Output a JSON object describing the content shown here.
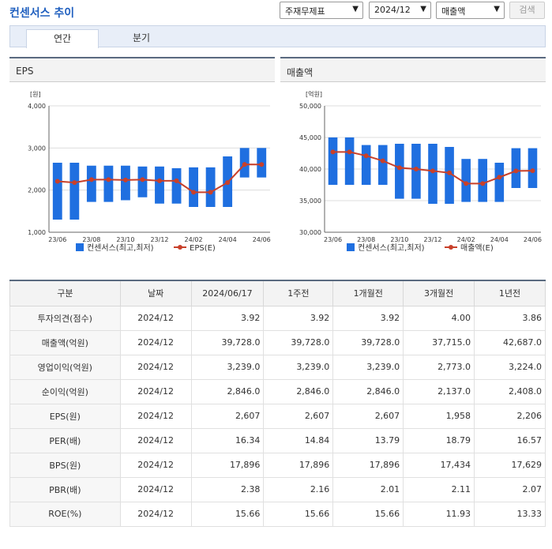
{
  "header": {
    "title": "컨센서스 추이",
    "select1": "주재무제표",
    "select2": "2024/12",
    "select3": "매출액",
    "search_label": "검색"
  },
  "tabs": [
    {
      "label": "연간"
    },
    {
      "label": "분기"
    }
  ],
  "chart_data": [
    {
      "type": "bar",
      "title": "EPS",
      "unit_label": "[원]",
      "ylim": [
        1000,
        4000
      ],
      "y_ticks": [
        "1,000",
        "2,000",
        "3,000",
        "4,000"
      ],
      "x_tick_labels": [
        "23/06",
        "23/08",
        "23/10",
        "23/12",
        "24/02",
        "24/04",
        "24/06"
      ],
      "legend": [
        "컨센서스(최고,최저)",
        "EPS(E)"
      ],
      "categories": [
        "23/06",
        "23/07",
        "23/08",
        "23/09",
        "23/10",
        "23/11",
        "23/12",
        "24/01",
        "24/02",
        "24/03",
        "24/04",
        "24/05",
        "24/06"
      ],
      "range_series": {
        "name": "컨센서스(최고,최저)",
        "high": [
          2650,
          2650,
          2580,
          2580,
          2580,
          2560,
          2560,
          2520,
          2540,
          2540,
          2800,
          3000,
          3000
        ],
        "low": [
          1300,
          1300,
          1720,
          1720,
          1760,
          1830,
          1680,
          1680,
          1600,
          1600,
          1600,
          2300,
          2300
        ]
      },
      "line_series": {
        "name": "EPS(E)",
        "values": [
          2210,
          2180,
          2250,
          2250,
          2240,
          2250,
          2220,
          2220,
          1950,
          1950,
          2180,
          2610,
          2607
        ]
      }
    },
    {
      "type": "bar",
      "title": "매출액",
      "unit_label": "[억원]",
      "ylim": [
        30000,
        50000
      ],
      "y_ticks": [
        "30,000",
        "35,000",
        "40,000",
        "45,000",
        "50,000"
      ],
      "x_tick_labels": [
        "23/06",
        "23/08",
        "23/10",
        "23/12",
        "24/02",
        "24/04",
        "24/06"
      ],
      "legend": [
        "컨센서스(최고,최저)",
        "매출액(E)"
      ],
      "categories": [
        "23/06",
        "23/07",
        "23/08",
        "23/09",
        "23/10",
        "23/11",
        "23/12",
        "24/01",
        "24/02",
        "24/03",
        "24/04",
        "24/05",
        "24/06"
      ],
      "range_series": {
        "name": "컨센서스(최고,최저)",
        "high": [
          45000,
          45000,
          43800,
          43800,
          44000,
          44000,
          44000,
          43500,
          41600,
          41600,
          41000,
          43300,
          43300
        ],
        "low": [
          37500,
          37500,
          37500,
          37500,
          35300,
          35300,
          34500,
          34500,
          34800,
          34800,
          34800,
          37000,
          37000
        ]
      },
      "line_series": {
        "name": "매출액(E)",
        "values": [
          42700,
          42700,
          42100,
          41300,
          40200,
          40000,
          39700,
          39400,
          37700,
          37700,
          38700,
          39700,
          39728
        ]
      }
    }
  ],
  "table": {
    "headers": [
      "구분",
      "날짜",
      "2024/06/17",
      "1주전",
      "1개월전",
      "3개월전",
      "1년전"
    ],
    "rows": [
      {
        "label": "투자의견(점수)",
        "date": "2024/12",
        "values": [
          "3.92",
          "3.92",
          "3.92",
          "4.00",
          "3.86"
        ]
      },
      {
        "label": "매출액(억원)",
        "date": "2024/12",
        "values": [
          "39,728.0",
          "39,728.0",
          "39,728.0",
          "37,715.0",
          "42,687.0"
        ]
      },
      {
        "label": "영업이익(억원)",
        "date": "2024/12",
        "values": [
          "3,239.0",
          "3,239.0",
          "3,239.0",
          "2,773.0",
          "3,224.0"
        ]
      },
      {
        "label": "순이익(억원)",
        "date": "2024/12",
        "values": [
          "2,846.0",
          "2,846.0",
          "2,846.0",
          "2,137.0",
          "2,408.0"
        ]
      },
      {
        "label": "EPS(원)",
        "date": "2024/12",
        "values": [
          "2,607",
          "2,607",
          "2,607",
          "1,958",
          "2,206"
        ]
      },
      {
        "label": "PER(배)",
        "date": "2024/12",
        "values": [
          "16.34",
          "14.84",
          "13.79",
          "18.79",
          "16.57"
        ]
      },
      {
        "label": "BPS(원)",
        "date": "2024/12",
        "values": [
          "17,896",
          "17,896",
          "17,896",
          "17,434",
          "17,629"
        ]
      },
      {
        "label": "PBR(배)",
        "date": "2024/12",
        "values": [
          "2.38",
          "2.16",
          "2.01",
          "2.11",
          "2.07"
        ]
      },
      {
        "label": "ROE(%)",
        "date": "2024/12",
        "values": [
          "15.66",
          "15.66",
          "15.66",
          "11.93",
          "13.33"
        ]
      }
    ]
  }
}
